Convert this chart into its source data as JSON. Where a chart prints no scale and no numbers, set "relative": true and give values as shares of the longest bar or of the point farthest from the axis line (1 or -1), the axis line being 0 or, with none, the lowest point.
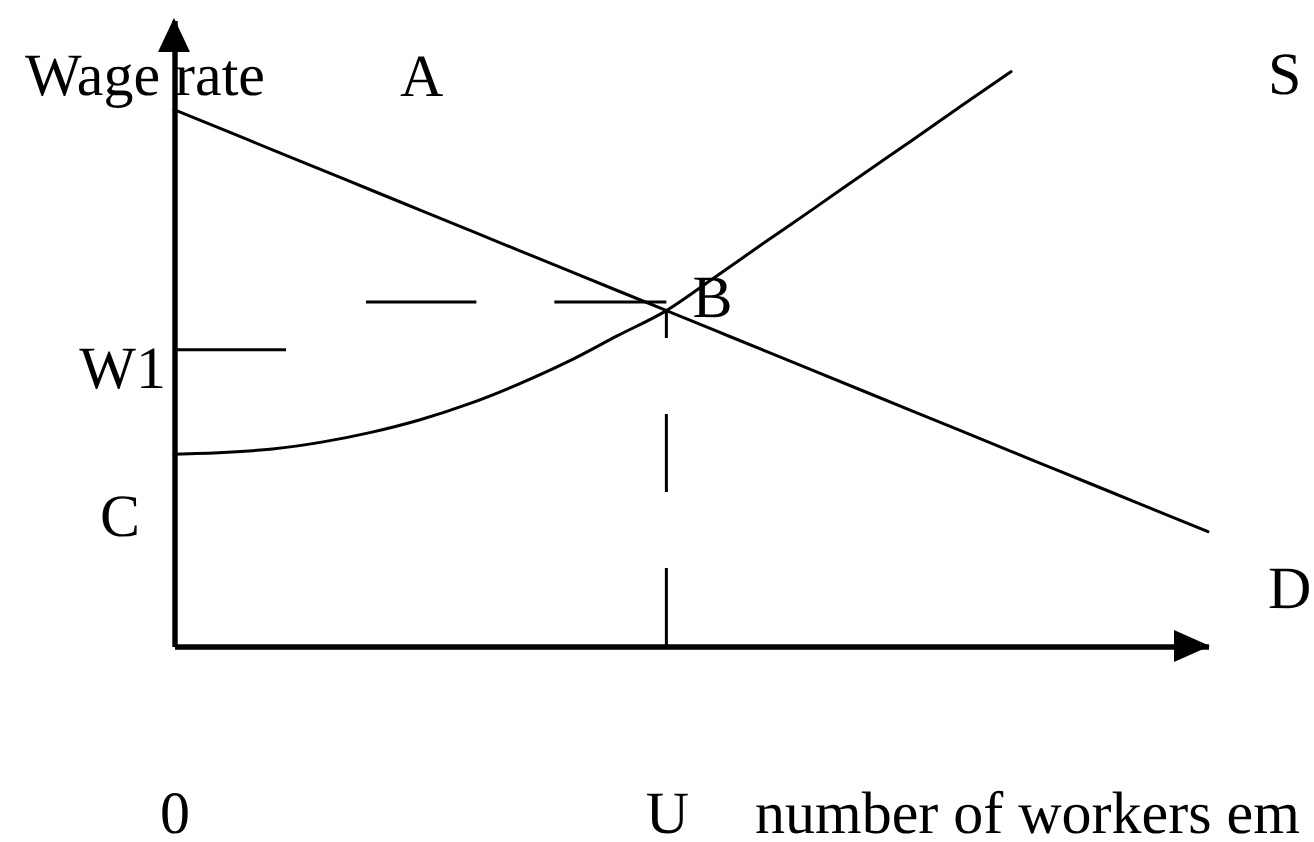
{
  "chart_data": {
    "type": "line",
    "relative": true,
    "ylabel": "Wage rate",
    "xlabel": "number of workers em",
    "categories": [
      "0",
      null,
      null,
      null,
      null,
      null,
      null,
      null,
      null,
      null,
      "U",
      null,
      null,
      null,
      null,
      null,
      null,
      null,
      null,
      null,
      null,
      null
    ],
    "series": [
      {
        "name": "S",
        "color": "#000000",
        "values": [
          0.334,
          0.337,
          0.343,
          0.355,
          0.372,
          0.394,
          0.422,
          0.456,
          0.495,
          0.54,
          0.584,
          0.643,
          0.703,
          0.762,
          0.822,
          0.881,
          0.941,
          1,
          null,
          null,
          null,
          null
        ]
      },
      {
        "name": "D",
        "color": "#000000",
        "values": [
          0.934,
          0.899,
          0.864,
          0.829,
          0.794,
          0.759,
          0.724,
          0.689,
          0.654,
          0.619,
          0.584,
          0.549,
          0.514,
          0.479,
          0.444,
          0.409,
          0.374,
          0.339,
          0.304,
          0.269,
          0.234,
          0.199
        ]
      }
    ],
    "ref_lines": [
      {
        "axis": "y",
        "value": 0.516,
        "label": "W1",
        "line_style": "solid"
      },
      {
        "axis": "y",
        "value": 0.599,
        "line_style": "dashed"
      },
      {
        "axis": "x",
        "value": "U",
        "line_style": "dashed"
      }
    ],
    "annotations": [
      "A",
      {
        "text": "B",
        "x": "U",
        "y": 0.584
      },
      "C"
    ]
  }
}
